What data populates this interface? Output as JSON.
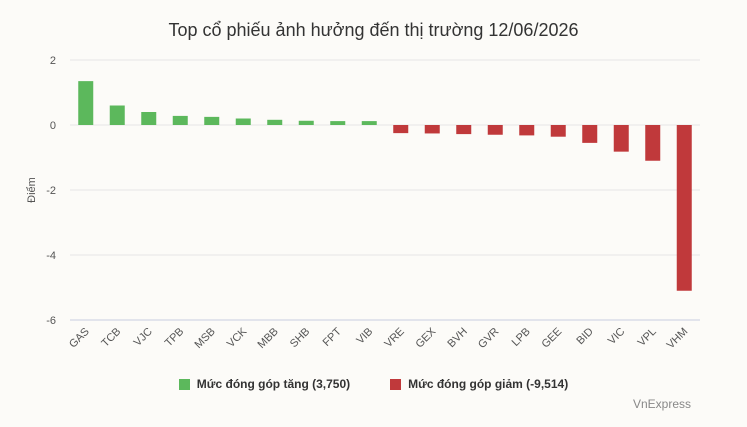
{
  "chart_data": {
    "type": "bar",
    "title": "Top cổ phiếu ảnh hưởng đến thị trường 12/06/2026",
    "ylabel": "Điểm",
    "xlabel": "",
    "ylim": [
      -6,
      2
    ],
    "yticks": [
      2,
      0,
      -2,
      -4,
      -6
    ],
    "grid": true,
    "legend_position": "bottom",
    "categories": [
      "GAS",
      "TCB",
      "VJC",
      "TPB",
      "MSB",
      "VCK",
      "MBB",
      "SHB",
      "FPT",
      "VIB",
      "VRE",
      "GEX",
      "BVH",
      "GVR",
      "LPB",
      "GEE",
      "BID",
      "VIC",
      "VPL",
      "VHM"
    ],
    "values": [
      1.35,
      0.6,
      0.4,
      0.28,
      0.25,
      0.2,
      0.16,
      0.13,
      0.12,
      0.12,
      -0.25,
      -0.26,
      -0.28,
      -0.3,
      -0.32,
      -0.36,
      -0.55,
      -0.82,
      -1.1,
      -5.1
    ],
    "series": [
      {
        "name": "Mức đóng góp tăng (3,750)",
        "color": "#5cb85c"
      },
      {
        "name": "Mức đóng góp giảm (-9,514)",
        "color": "#c0393b"
      }
    ]
  },
  "credit": "VnExpress"
}
